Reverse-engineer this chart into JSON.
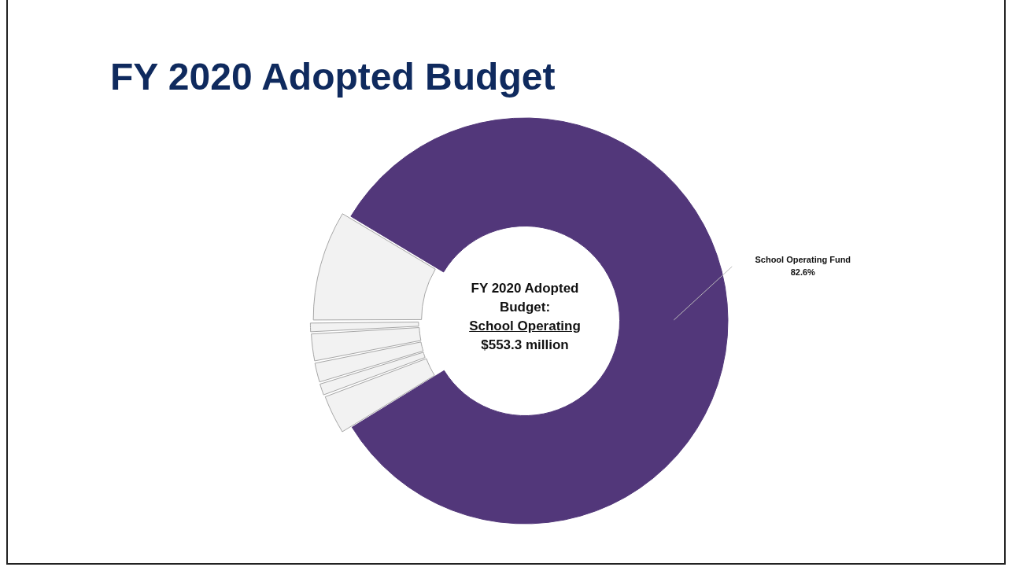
{
  "chart_data": {
    "type": "donut",
    "title": "FY 2020 Adopted Budget",
    "categories": [
      "School Operating Fund",
      null,
      null,
      null,
      null,
      null,
      null
    ],
    "values": [
      82.6,
      3.1,
      1.0,
      1.6,
      2.2,
      0.8,
      8.7
    ],
    "colors": [
      "#52377a",
      "#f2f2f2",
      "#f2f2f2",
      "#f2f2f2",
      "#f2f2f2",
      "#f2f2f2",
      "#f2f2f2"
    ],
    "value_labels": [
      "82.6%",
      null,
      null,
      null,
      null,
      null,
      null
    ],
    "annotations": [
      "FY 2020 Adopted Budget:",
      "School Operating",
      "$553.3 million"
    ],
    "legend": false
  }
}
